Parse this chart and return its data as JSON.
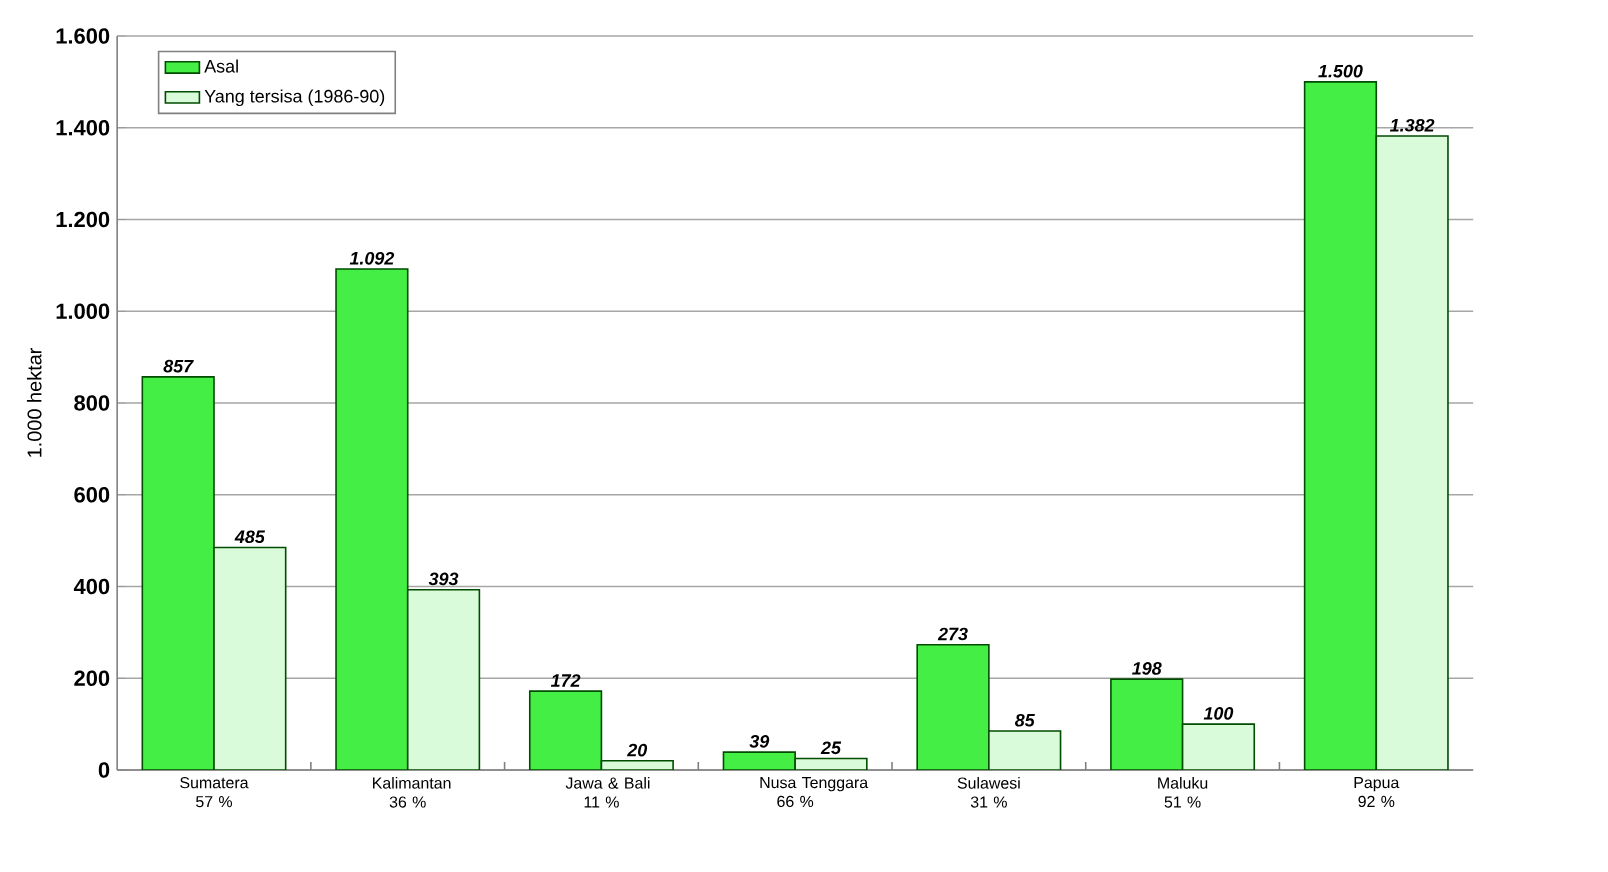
{
  "chart_data": {
    "type": "bar",
    "ylabel": "1.000 hektar",
    "categories": [
      "Sumatera 57 %",
      "Kalimantan 36 %",
      "Jawa & Bali 11 %",
      "Nusa Tenggara 66 %",
      "Sulawesi 31 %",
      "Maluku 51 %",
      "Papua 92 %"
    ],
    "series": [
      {
        "name": "Asal",
        "color": "#44ee44",
        "values": [
          857,
          1092,
          172,
          39,
          273,
          198,
          1500
        ],
        "value_labels": [
          "857",
          "1.092",
          "172",
          "39",
          "273",
          "198",
          "1.500"
        ]
      },
      {
        "name": "Yang tersisa (1986-90)",
        "color": "#d9fbd9",
        "values": [
          485,
          393,
          20,
          25,
          85,
          100,
          1382
        ],
        "value_labels": [
          "485",
          "393",
          "20",
          "25",
          "85",
          "100",
          "1.382"
        ]
      }
    ],
    "ylim": [
      0,
      1600
    ],
    "yticks": [
      {
        "value": 0,
        "label": "0"
      },
      {
        "value": 200,
        "label": "200"
      },
      {
        "value": 400,
        "label": "400"
      },
      {
        "value": 600,
        "label": "600"
      },
      {
        "value": 800,
        "label": "800"
      },
      {
        "value": 1000,
        "label": "1.000"
      },
      {
        "value": 1200,
        "label": "1.200"
      },
      {
        "value": 1400,
        "label": "1.400"
      },
      {
        "value": 1600,
        "label": "1.600"
      }
    ],
    "grid": "y",
    "legend": "top left"
  }
}
